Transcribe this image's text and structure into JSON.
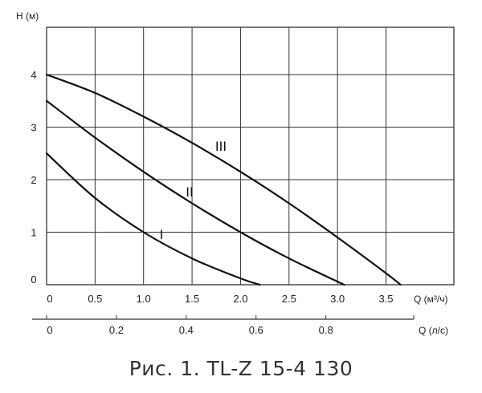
{
  "chart_data": {
    "type": "line",
    "ylabel": "H (м)",
    "xlabel": "Q (м³/ч)",
    "x2label": "Q (л/с)",
    "xlim": [
      0,
      4.2
    ],
    "ylim": [
      0,
      4.9
    ],
    "x_ticks": [
      "0",
      "0.5",
      "1.0",
      "1.5",
      "2.0",
      "2.5",
      "3.0",
      "3.5"
    ],
    "x_tick_values": [
      0,
      0.5,
      1.0,
      1.5,
      2.0,
      2.5,
      3.0,
      3.5
    ],
    "x2_ticks": [
      "0",
      "0.2",
      "0.4",
      "0.6",
      "0.8"
    ],
    "x2_tick_values": [
      0,
      0.2,
      0.4,
      0.6,
      0.8
    ],
    "y_ticks": [
      "0",
      "1",
      "2",
      "3",
      "4"
    ],
    "y_tick_values": [
      0,
      1,
      2,
      3,
      4
    ],
    "grid": true,
    "series": [
      {
        "name": "I",
        "x": [
          0,
          0.5,
          1.0,
          1.5,
          2.0,
          2.2
        ],
        "y": [
          2.5,
          1.65,
          1.0,
          0.5,
          0.12,
          0
        ]
      },
      {
        "name": "II",
        "x": [
          0,
          0.5,
          1.0,
          1.5,
          2.0,
          2.5,
          3.0,
          3.07
        ],
        "y": [
          3.5,
          2.8,
          2.15,
          1.55,
          1.0,
          0.5,
          0.06,
          0
        ]
      },
      {
        "name": "III",
        "x": [
          0,
          0.5,
          1.0,
          1.5,
          2.0,
          2.5,
          3.0,
          3.5,
          3.65
        ],
        "y": [
          4.0,
          3.65,
          3.2,
          2.7,
          2.15,
          1.55,
          0.9,
          0.22,
          0
        ]
      }
    ]
  },
  "caption": "Рис. 1. TL-Z 15-4 130"
}
